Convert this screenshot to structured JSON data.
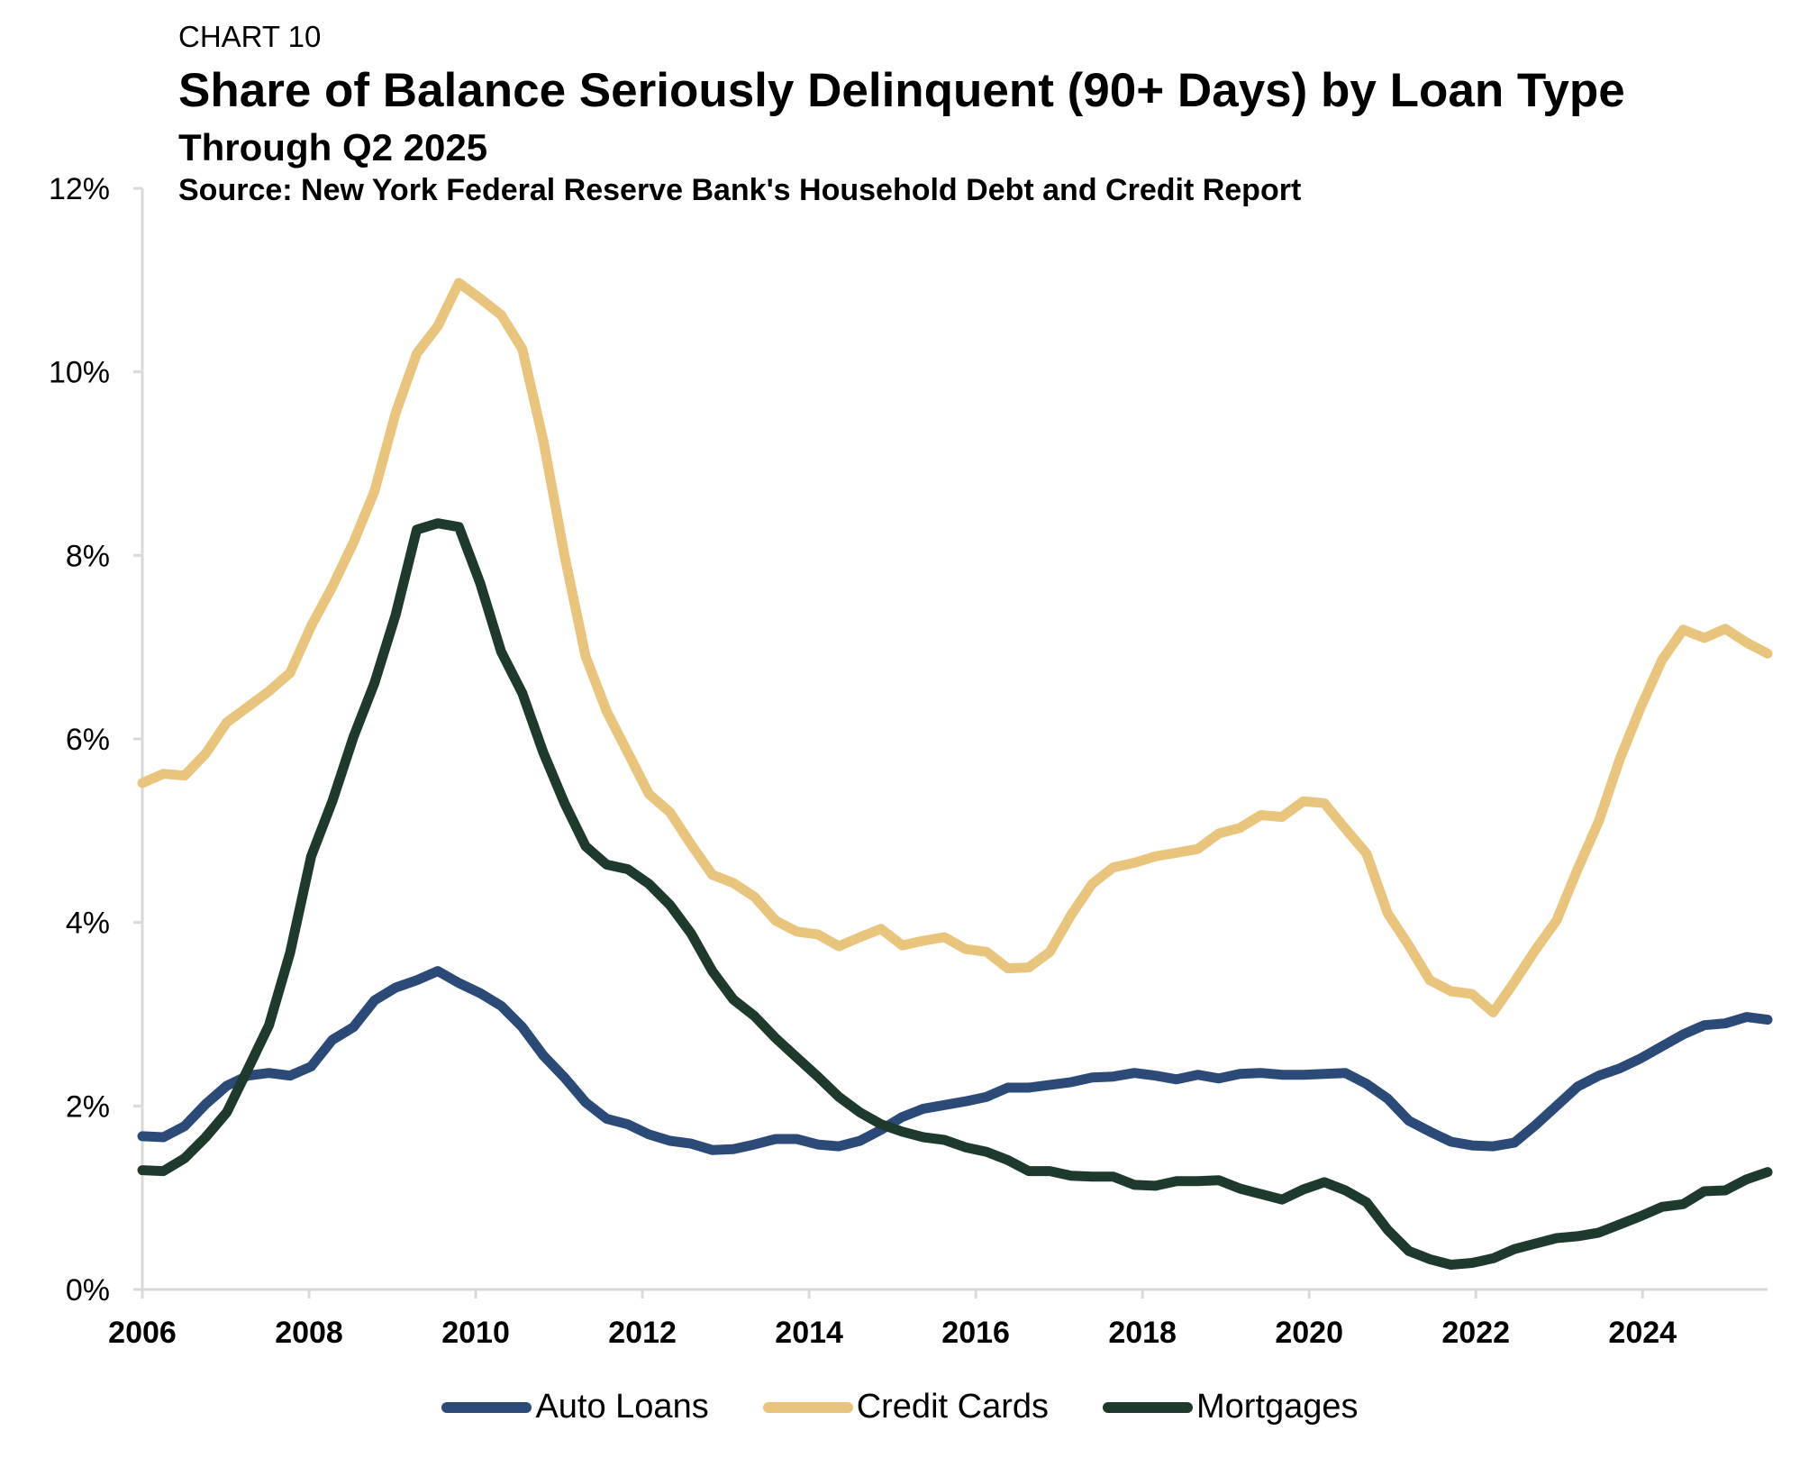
{
  "header": {
    "label": "CHART 10",
    "title": "Share of Balance Seriously Delinquent (90+ Days) by Loan Type",
    "subtitle": "Through Q2 2025",
    "source": "Source: New York Federal Reserve Bank's Household Debt and Credit Report"
  },
  "chart_data": {
    "type": "line",
    "title": "Share of Balance Seriously Delinquent (90+ Days) by Loan Type",
    "subtitle": "Through Q2 2025",
    "xlabel": "",
    "ylabel": "",
    "x_start": "2006-Q1",
    "x_end": "2025-Q2",
    "xlim": [
      2006,
      2025.5
    ],
    "ylim": [
      0,
      12
    ],
    "x_ticks": [
      "2006",
      "2008",
      "2010",
      "2012",
      "2014",
      "2016",
      "2018",
      "2020",
      "2022",
      "2024"
    ],
    "y_ticks": [
      "0%",
      "2%",
      "4%",
      "6%",
      "8%",
      "10%",
      "12%"
    ],
    "grid": false,
    "legend_position": "bottom",
    "series": [
      {
        "name": "Auto Loans",
        "color": "#2b4a78",
        "values": [
          1.67,
          1.66,
          1.78,
          2.02,
          2.22,
          2.33,
          2.36,
          2.33,
          2.43,
          2.72,
          2.86,
          3.15,
          3.29,
          3.37,
          3.47,
          3.34,
          3.23,
          3.09,
          2.86,
          2.55,
          2.31,
          2.04,
          1.86,
          1.8,
          1.69,
          1.62,
          1.59,
          1.52,
          1.53,
          1.58,
          1.64,
          1.64,
          1.58,
          1.56,
          1.62,
          1.74,
          1.88,
          1.97,
          2.01,
          2.05,
          2.1,
          2.2,
          2.2,
          2.23,
          2.26,
          2.31,
          2.32,
          2.36,
          2.33,
          2.29,
          2.34,
          2.3,
          2.35,
          2.36,
          2.34,
          2.34,
          2.35,
          2.36,
          2.24,
          2.08,
          1.84,
          1.72,
          1.61,
          1.57,
          1.56,
          1.6,
          1.79,
          2.0,
          2.21,
          2.33,
          2.41,
          2.52,
          2.65,
          2.78,
          2.88,
          2.9,
          2.97,
          2.94
        ]
      },
      {
        "name": "Credit Cards",
        "color": "#e9c47c",
        "values": [
          5.52,
          5.62,
          5.6,
          5.84,
          6.18,
          6.35,
          6.52,
          6.72,
          7.23,
          7.66,
          8.14,
          8.7,
          9.55,
          10.2,
          10.5,
          10.97,
          10.8,
          10.62,
          10.25,
          9.25,
          8.0,
          6.9,
          6.3,
          5.85,
          5.4,
          5.2,
          4.85,
          4.52,
          4.43,
          4.28,
          4.02,
          3.9,
          3.87,
          3.74,
          3.84,
          3.93,
          3.75,
          3.8,
          3.84,
          3.71,
          3.68,
          3.5,
          3.51,
          3.68,
          4.08,
          4.42,
          4.6,
          4.65,
          4.72,
          4.76,
          4.8,
          4.97,
          5.03,
          5.17,
          5.15,
          5.32,
          5.3,
          5.02,
          4.75,
          4.1,
          3.75,
          3.37,
          3.25,
          3.22,
          3.02,
          3.35,
          3.7,
          4.02,
          4.58,
          5.1,
          5.78,
          6.35,
          6.86,
          7.19,
          7.1,
          7.2,
          7.05,
          6.93
        ]
      },
      {
        "name": "Mortgages",
        "color": "#1d3a2c",
        "values": [
          1.3,
          1.29,
          1.43,
          1.66,
          1.93,
          2.4,
          2.88,
          3.67,
          4.72,
          5.32,
          6.02,
          6.61,
          7.35,
          8.28,
          8.35,
          8.31,
          7.7,
          6.95,
          6.5,
          5.85,
          5.3,
          4.83,
          4.63,
          4.58,
          4.42,
          4.19,
          3.88,
          3.47,
          3.16,
          2.98,
          2.74,
          2.53,
          2.32,
          2.1,
          1.93,
          1.8,
          1.72,
          1.66,
          1.63,
          1.55,
          1.5,
          1.41,
          1.29,
          1.29,
          1.24,
          1.23,
          1.23,
          1.14,
          1.13,
          1.18,
          1.18,
          1.19,
          1.1,
          1.04,
          0.98,
          1.09,
          1.17,
          1.08,
          0.95,
          0.65,
          0.42,
          0.33,
          0.27,
          0.29,
          0.34,
          0.44,
          0.5,
          0.56,
          0.58,
          0.62,
          0.71,
          0.8,
          0.9,
          0.93,
          1.07,
          1.08,
          1.2,
          1.28
        ]
      }
    ]
  }
}
